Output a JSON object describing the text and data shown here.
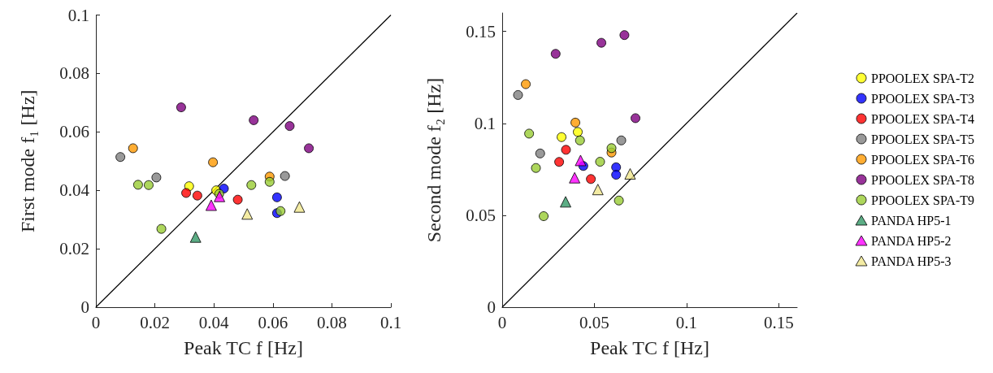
{
  "chart_data": [
    {
      "type": "scatter",
      "xlabel": "Peak TC f [Hz]",
      "ylabel": "First mode f₁ [Hz]",
      "xlim": [
        0,
        0.1
      ],
      "ylim": [
        0,
        0.1
      ],
      "xticks": [
        0,
        0.02,
        0.04,
        0.06,
        0.08,
        0.1
      ],
      "yticks": [
        0,
        0.02,
        0.04,
        0.06,
        0.08,
        0.1
      ],
      "grid": false,
      "legend": false,
      "series": [
        {
          "color": "#ffff00",
          "marker": "circle",
          "x": [
            0.0316,
            0.0408
          ],
          "values": [
            0.0414,
            0.04
          ]
        },
        {
          "color": "#0000ff",
          "marker": "circle",
          "x": [
            0.0434,
            0.0614,
            0.0614
          ],
          "values": [
            0.0406,
            0.0376,
            0.0322
          ]
        },
        {
          "color": "#ff0000",
          "marker": "circle",
          "x": [
            0.0306,
            0.0344,
            0.0481
          ],
          "values": [
            0.0391,
            0.0382,
            0.0368
          ]
        },
        {
          "color": "#808080",
          "marker": "circle",
          "x": [
            0.0083,
            0.0205,
            0.0641
          ],
          "values": [
            0.0514,
            0.0444,
            0.0449
          ]
        },
        {
          "color": "#ff9900",
          "marker": "circle",
          "x": [
            0.0126,
            0.0397,
            0.0589
          ],
          "values": [
            0.0544,
            0.0496,
            0.0447
          ]
        },
        {
          "color": "#7e0080",
          "marker": "circle",
          "x": [
            0.0289,
            0.0535,
            0.0657,
            0.0722
          ],
          "values": [
            0.0684,
            0.064,
            0.062,
            0.0544
          ]
        },
        {
          "color": "#99cc33",
          "marker": "circle",
          "x": [
            0.0143,
            0.0179,
            0.0222,
            0.0418,
            0.0527,
            0.0589,
            0.0626
          ],
          "values": [
            0.0419,
            0.0418,
            0.0268,
            0.0388,
            0.0418,
            0.0429,
            0.0329
          ]
        },
        {
          "color": "#339966",
          "marker": "triangle",
          "x": [
            0.0338
          ],
          "values": [
            0.024
          ]
        },
        {
          "color": "#ff00ff",
          "marker": "triangle",
          "x": [
            0.0391,
            0.0419
          ],
          "values": [
            0.0349,
            0.0379
          ]
        },
        {
          "color": "#f0e68c",
          "marker": "triangle",
          "x": [
            0.0513,
            0.069
          ],
          "values": [
            0.0319,
            0.0343
          ]
        },
        {
          "type": "line",
          "color": "#000000",
          "marker": "none",
          "line_style": "solid",
          "x": [
            0,
            0.1
          ],
          "values": [
            0,
            0.1
          ]
        }
      ]
    },
    {
      "type": "scatter",
      "xlabel": "Peak TC f [Hz]",
      "ylabel": "Second mode f₂ [Hz]",
      "xlim": [
        0,
        0.16
      ],
      "ylim": [
        0,
        0.16
      ],
      "xticks": [
        0,
        0.05,
        0.1,
        0.15
      ],
      "yticks": [
        0,
        0.05,
        0.1,
        0.15
      ],
      "grid": false,
      "legend": "right",
      "series": [
        {
          "name": "PPOOLEX SPA-T2",
          "color": "#ffff00",
          "marker": "circle",
          "x": [
            0.0322,
            0.041
          ],
          "values": [
            0.0925,
            0.0953
          ]
        },
        {
          "name": "PPOOLEX SPA-T3",
          "color": "#0000ff",
          "marker": "circle",
          "x": [
            0.044,
            0.0618,
            0.0618
          ],
          "values": [
            0.0768,
            0.0761,
            0.072
          ]
        },
        {
          "name": "PPOOLEX SPA-T4",
          "color": "#ff0000",
          "marker": "circle",
          "x": [
            0.0309,
            0.0346,
            0.0481
          ],
          "values": [
            0.079,
            0.0856,
            0.0697
          ]
        },
        {
          "name": "PPOOLEX SPA-T5",
          "color": "#808080",
          "marker": "circle",
          "x": [
            0.0086,
            0.0206,
            0.0646
          ],
          "values": [
            0.1154,
            0.0836,
            0.0907
          ]
        },
        {
          "name": "PPOOLEX SPA-T6",
          "color": "#ff9900",
          "marker": "circle",
          "x": [
            0.0128,
            0.0397,
            0.0593
          ],
          "values": [
            0.1213,
            0.1004,
            0.0841
          ]
        },
        {
          "name": "PPOOLEX SPA-T8",
          "color": "#7e0080",
          "marker": "circle",
          "x": [
            0.029,
            0.0538,
            0.0663,
            0.0723
          ],
          "values": [
            0.1378,
            0.1438,
            0.148,
            0.1028
          ]
        },
        {
          "name": "PPOOLEX SPA-T9",
          "color": "#99cc33",
          "marker": "circle",
          "x": [
            0.0146,
            0.0183,
            0.0225,
            0.0422,
            0.0531,
            0.0593,
            0.0633
          ],
          "values": [
            0.0944,
            0.0757,
            0.0495,
            0.0907,
            0.0791,
            0.0865,
            0.058
          ]
        },
        {
          "name": "PANDA HP5-1",
          "color": "#339966",
          "marker": "triangle",
          "x": [
            0.0344
          ],
          "values": [
            0.0573
          ]
        },
        {
          "name": "PANDA HP5-2",
          "color": "#ff00ff",
          "marker": "triangle",
          "x": [
            0.0393,
            0.0425
          ],
          "values": [
            0.0704,
            0.0798
          ]
        },
        {
          "name": "PANDA HP5-3",
          "color": "#f0e68c",
          "marker": "triangle",
          "x": [
            0.0519,
            0.0694
          ],
          "values": [
            0.064,
            0.0725
          ]
        },
        {
          "type": "line",
          "color": "#000000",
          "marker": "none",
          "line_style": "solid",
          "x": [
            0,
            0.16
          ],
          "values": [
            0,
            0.16
          ]
        }
      ]
    }
  ]
}
